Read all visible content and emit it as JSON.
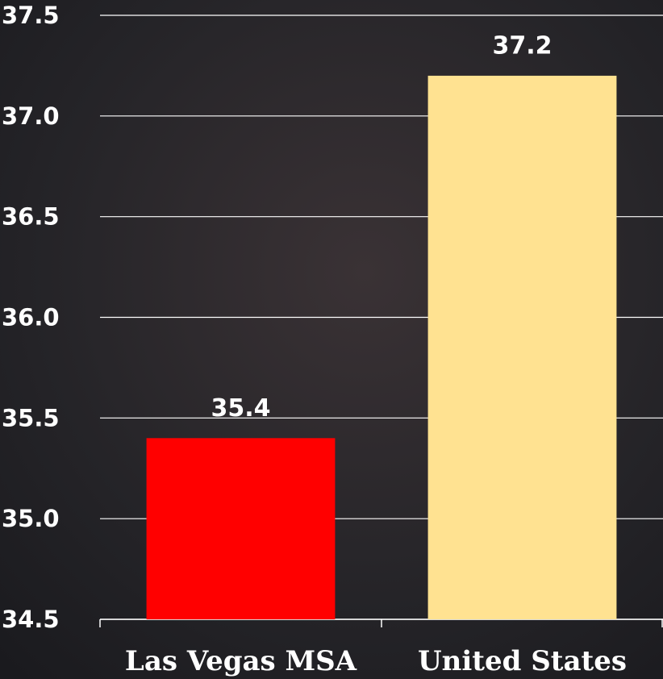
{
  "chart_data": {
    "type": "bar",
    "categories": [
      "Las Vegas MSA",
      "United States"
    ],
    "values": [
      35.4,
      37.2
    ],
    "colors": [
      "#ff0000",
      "#ffe291"
    ],
    "ylim": [
      34.5,
      37.5
    ],
    "yticks": [
      34.5,
      {
        "value": 35,
        "label": "35.0"
      },
      35.5,
      {
        "value": 36,
        "label": "36.0"
      },
      36.5,
      {
        "value": 37,
        "label": "37.0"
      },
      37.5
    ],
    "grid": true
  }
}
